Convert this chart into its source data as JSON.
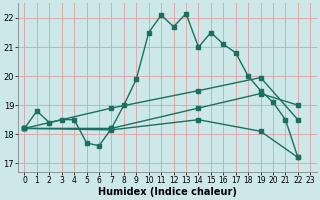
{
  "xlabel": "Humidex (Indice chaleur)",
  "xlim": [
    -0.5,
    23.5
  ],
  "ylim": [
    16.7,
    22.5
  ],
  "yticks": [
    17,
    18,
    19,
    20,
    21,
    22
  ],
  "xticks": [
    0,
    1,
    2,
    3,
    4,
    5,
    6,
    7,
    8,
    9,
    10,
    11,
    12,
    13,
    14,
    15,
    16,
    17,
    18,
    19,
    20,
    21,
    22,
    23
  ],
  "bg_color": "#cce8e8",
  "grid_color": "#ddaaaa",
  "line_color": "#1a7060",
  "line1_x": [
    0,
    1,
    2,
    3,
    4,
    5,
    6,
    7,
    8,
    9,
    10,
    11,
    12,
    13,
    14,
    15,
    16,
    17,
    18,
    19,
    20,
    21,
    22
  ],
  "line1_y": [
    18.2,
    18.8,
    18.4,
    18.5,
    18.5,
    17.7,
    17.6,
    18.2,
    19.0,
    19.9,
    21.5,
    22.1,
    21.7,
    22.15,
    21.0,
    21.5,
    21.1,
    20.8,
    20.0,
    19.5,
    19.1,
    18.5,
    17.2
  ],
  "line2_x": [
    0,
    7,
    14,
    19,
    22
  ],
  "line2_y": [
    18.2,
    18.9,
    19.5,
    19.95,
    18.5
  ],
  "line3_x": [
    0,
    7,
    14,
    19,
    22
  ],
  "line3_y": [
    18.2,
    18.15,
    18.5,
    18.1,
    17.2
  ],
  "line4_x": [
    0,
    7,
    14,
    19,
    22
  ],
  "line4_y": [
    18.2,
    18.2,
    18.9,
    19.4,
    19.0
  ]
}
